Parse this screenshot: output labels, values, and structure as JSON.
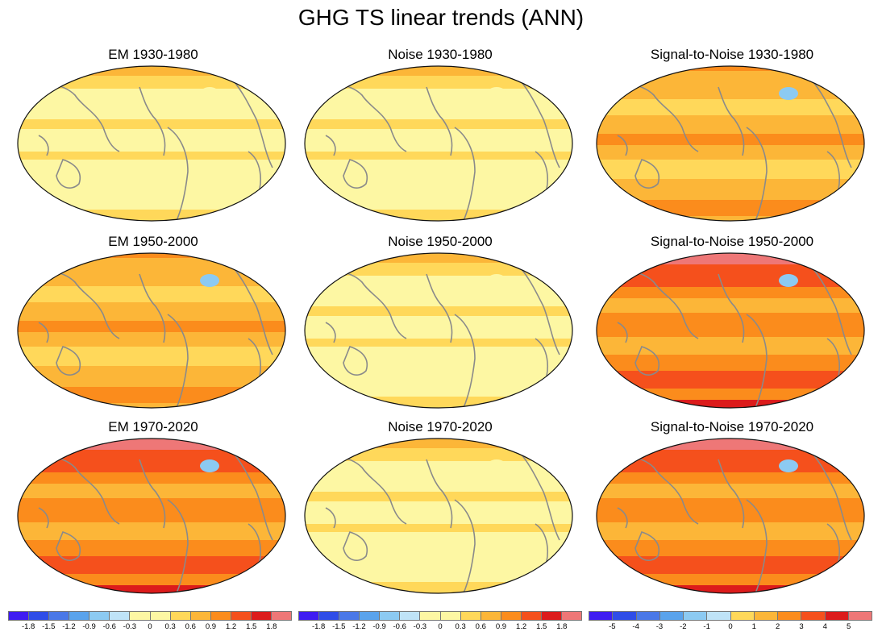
{
  "main_title": "GHG TS linear trends (ANN)",
  "colors": {
    "trend_palette": [
      "#3f1cf2",
      "#2f4de8",
      "#4a78e8",
      "#5aa3ec",
      "#8ccaf2",
      "#bfe3f7",
      "#fdf7a3",
      "#ffd85a",
      "#fcb638",
      "#fb8c1c",
      "#f5501c",
      "#dc1b1b",
      "#ee7777"
    ],
    "coast": "#8a8a8a",
    "outline": "#111111"
  },
  "panels": [
    {
      "title": "EM 1930-1980",
      "style": "light"
    },
    {
      "title": "Noise 1930-1980",
      "style": "light"
    },
    {
      "title": "Signal-to-Noise 1930-1980",
      "style": "medium"
    },
    {
      "title": "EM 1950-2000",
      "style": "medium"
    },
    {
      "title": "Noise 1950-2000",
      "style": "light"
    },
    {
      "title": "Signal-to-Noise 1950-2000",
      "style": "strong"
    },
    {
      "title": "EM 1970-2020",
      "style": "strong"
    },
    {
      "title": "Noise 1970-2020",
      "style": "light"
    },
    {
      "title": "Signal-to-Noise 1970-2020",
      "style": "strong"
    }
  ],
  "colorbars": [
    {
      "labels": [
        "-1.8",
        "-1.5",
        "-1.2",
        "-0.9",
        "-0.6",
        "-0.3",
        "0",
        "0.3",
        "0.6",
        "0.9",
        "1.2",
        "1.5",
        "1.8"
      ]
    },
    {
      "labels": [
        "-1.8",
        "-1.5",
        "-1.2",
        "-0.9",
        "-0.6",
        "-0.3",
        "0",
        "0.3",
        "0.6",
        "0.9",
        "1.2",
        "1.5",
        "1.8"
      ]
    },
    {
      "labels": [
        "-5",
        "-4",
        "-3",
        "-2",
        "-1",
        "0",
        "1",
        "2",
        "3",
        "4",
        "5"
      ]
    }
  ]
}
